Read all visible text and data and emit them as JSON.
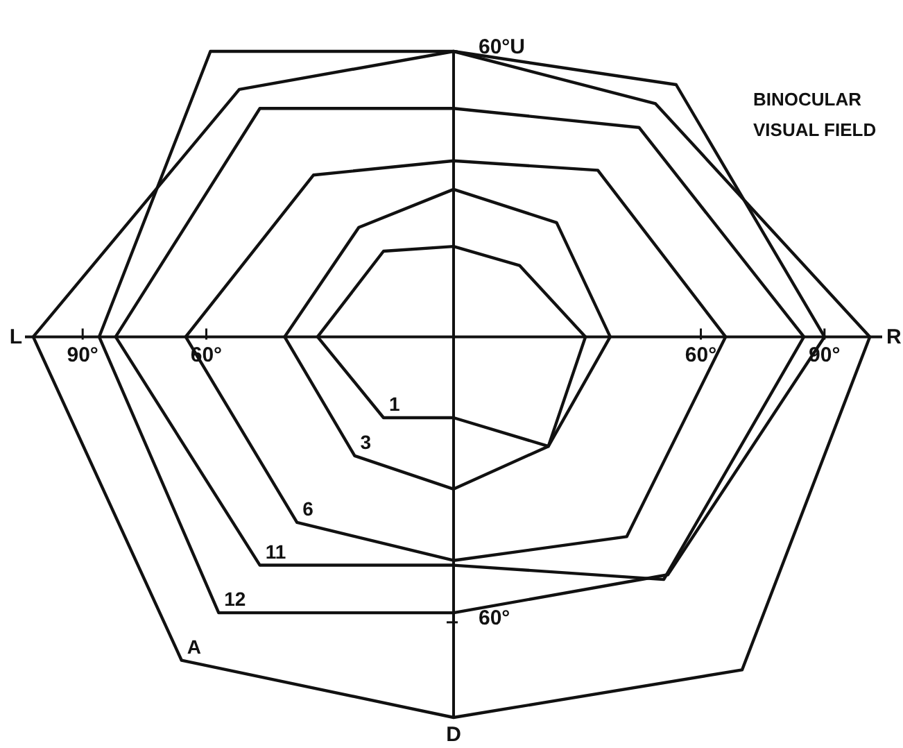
{
  "chart_data": {
    "type": "line",
    "title": "BINOCULAR VISUAL FIELD",
    "xlim": [
      -104,
      104
    ],
    "ylim": [
      -80,
      60
    ],
    "xticks": [
      {
        "value": -90,
        "label": "90°"
      },
      {
        "value": -60,
        "label": "60°"
      },
      {
        "value": 60,
        "label": "60°"
      },
      {
        "value": 90,
        "label": "90°"
      }
    ],
    "yticks": [
      {
        "value": -60,
        "label": "60°"
      },
      {
        "value": 60,
        "label": "60°U"
      }
    ],
    "grid": false,
    "marker": "none",
    "line_style": "solid",
    "annotations": [
      "L",
      "R",
      "D"
    ],
    "series": [
      {
        "color": "#111111",
        "x": [
          -33,
          -17,
          0,
          16,
          32
        ],
        "values": [
          0,
          18,
          19,
          15,
          0
        ]
      },
      {
        "name": "1",
        "color": "#111111",
        "x": [
          -33,
          -17,
          0,
          23,
          32
        ],
        "values": [
          0,
          -17,
          -17,
          -23,
          0
        ]
      },
      {
        "color": "#111111",
        "x": [
          -41,
          -23,
          0,
          25,
          38
        ],
        "values": [
          0,
          23,
          31,
          24,
          0
        ]
      },
      {
        "name": "3",
        "color": "#111111",
        "x": [
          -41,
          -24,
          0,
          23,
          38
        ],
        "values": [
          0,
          -25,
          -32,
          -23,
          0
        ]
      },
      {
        "color": "#111111",
        "x": [
          -65,
          -34,
          0,
          35,
          66
        ],
        "values": [
          0,
          34,
          37,
          35,
          0
        ]
      },
      {
        "name": "6",
        "color": "#111111",
        "x": [
          -65,
          -38,
          0,
          42,
          66
        ],
        "values": [
          0,
          -39,
          -47,
          -42,
          0
        ]
      },
      {
        "color": "#111111",
        "x": [
          -82,
          -47,
          0,
          45,
          85
        ],
        "values": [
          0,
          48,
          48,
          44,
          0
        ]
      },
      {
        "name": "11",
        "color": "#111111",
        "x": [
          -82,
          -47,
          0,
          51,
          85
        ],
        "values": [
          0,
          -48,
          -48,
          -51,
          0
        ]
      },
      {
        "color": "#111111",
        "x": [
          -86,
          -59,
          0,
          54,
          90
        ],
        "values": [
          0,
          60,
          60,
          53,
          0
        ]
      },
      {
        "name": "12",
        "color": "#111111",
        "x": [
          -86,
          -57,
          0,
          52,
          90
        ],
        "values": [
          0,
          -58,
          -58,
          -50,
          0
        ]
      },
      {
        "color": "#111111",
        "x": [
          -102,
          -52,
          0,
          49,
          101
        ],
        "values": [
          0,
          52,
          60,
          49,
          0
        ]
      },
      {
        "name": "A",
        "color": "#111111",
        "x": [
          -102,
          -66,
          0,
          70,
          101
        ],
        "values": [
          0,
          -68,
          -80,
          -70,
          0
        ]
      }
    ]
  }
}
